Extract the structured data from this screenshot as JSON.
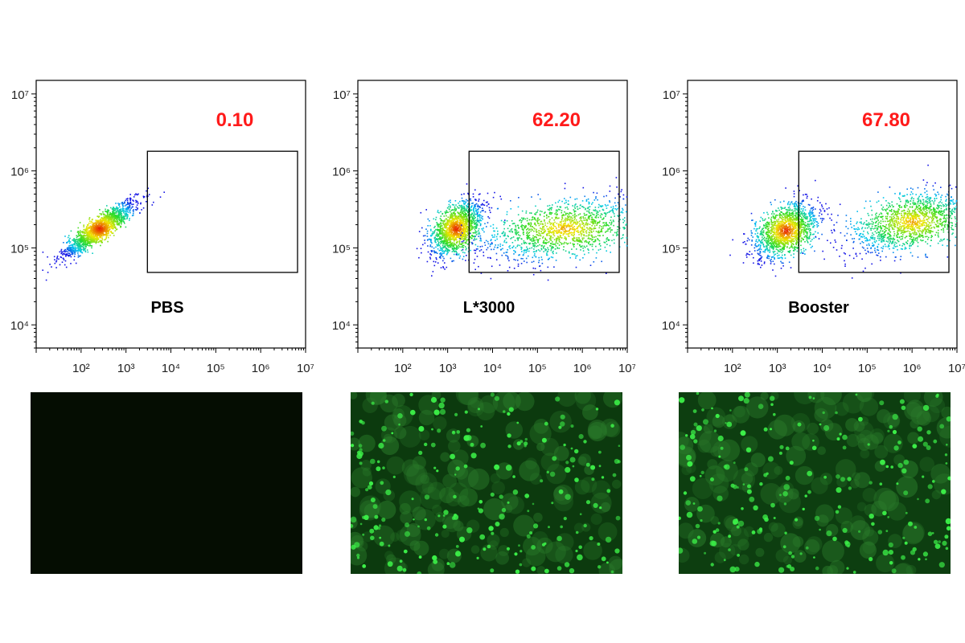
{
  "chart_data": [
    {
      "type": "scatter",
      "title": "",
      "sample_label": "PBS",
      "gate_percent": "0.10",
      "x_axis": {
        "scale": "log",
        "range": [
          10,
          10000000
        ],
        "tick_labels": [
          "10^2",
          "10^3",
          "10^4",
          "10^5",
          "10^6",
          "10^7"
        ]
      },
      "y_axis": {
        "scale": "log",
        "range": [
          5000,
          15000000
        ],
        "tick_labels": [
          "10^4",
          "10^5",
          "10^6",
          "10^7"
        ]
      },
      "gate": {
        "x_range": [
          3000,
          15000000
        ],
        "y_range": [
          48000,
          1800000
        ]
      },
      "populations": [
        {
          "center_x": 250,
          "center_y": 180000,
          "spread_log_x": 0.4,
          "spread_log_y": 0.18,
          "correlation": 0.9
        }
      ],
      "legend": "none",
      "grid": false
    },
    {
      "type": "scatter",
      "title": "",
      "sample_label": "L*3000",
      "gate_percent": "62.20",
      "x_axis": {
        "scale": "log",
        "range": [
          10,
          10000000
        ],
        "tick_labels": [
          "10^2",
          "10^3",
          "10^4",
          "10^5",
          "10^6",
          "10^7"
        ]
      },
      "y_axis": {
        "scale": "log",
        "range": [
          5000,
          15000000
        ],
        "tick_labels": [
          "10^4",
          "10^5",
          "10^6",
          "10^7"
        ]
      },
      "gate": {
        "x_range": [
          3000,
          15000000
        ],
        "y_range": [
          48000,
          1800000
        ]
      },
      "populations": [
        {
          "center_x": 1500,
          "center_y": 180000,
          "spread_log_x": 0.3,
          "spread_log_y": 0.18,
          "correlation": 0.5
        },
        {
          "center_x": 400000,
          "center_y": 180000,
          "spread_log_x": 0.9,
          "spread_log_y": 0.2,
          "correlation": 0.4
        }
      ],
      "legend": "none",
      "grid": false
    },
    {
      "type": "scatter",
      "title": "",
      "sample_label": "Booster",
      "gate_percent": "67.80",
      "x_axis": {
        "scale": "log",
        "range": [
          10,
          10000000
        ],
        "tick_labels": [
          "10^2",
          "10^3",
          "10^4",
          "10^5",
          "10^6",
          "10^7"
        ]
      },
      "y_axis": {
        "scale": "log",
        "range": [
          5000,
          15000000
        ],
        "tick_labels": [
          "10^4",
          "10^5",
          "10^6",
          "10^7"
        ]
      },
      "gate": {
        "x_range": [
          3000,
          15000000
        ],
        "y_range": [
          48000,
          1800000
        ]
      },
      "populations": [
        {
          "center_x": 1500,
          "center_y": 170000,
          "spread_log_x": 0.35,
          "spread_log_y": 0.18,
          "correlation": 0.4
        },
        {
          "center_x": 1000000,
          "center_y": 220000,
          "spread_log_x": 0.7,
          "spread_log_y": 0.2,
          "correlation": 0.45
        }
      ],
      "legend": "none",
      "grid": false
    }
  ],
  "micrographs": [
    {
      "sample": "PBS",
      "fluorescence": "none",
      "background": "#050d02",
      "cell_color": "#2ee83a"
    },
    {
      "sample": "L*3000",
      "fluorescence": "strong",
      "background": "#0c3a0e",
      "cell_color": "#3cf048"
    },
    {
      "sample": "Booster",
      "fluorescence": "strong",
      "background": "#0d3e10",
      "cell_color": "#3cf048"
    }
  ],
  "colors": {
    "gate_percent_text": "#ff1a1a",
    "axis": "#000000",
    "label_text": "#000000"
  }
}
